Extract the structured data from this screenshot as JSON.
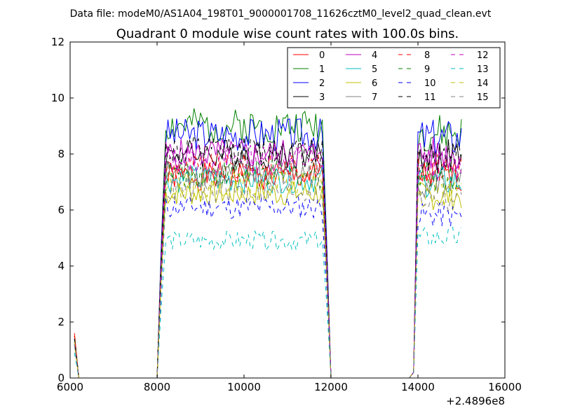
{
  "suptitle": "Data file: modeM0/AS1A04_198T01_9000001708_11626cztM0_level2_quad_clean.evt",
  "chart_data": {
    "type": "line",
    "title": "Quadrant 0 module wise count rates with 100.0s bins.",
    "xlabel": "",
    "ylabel": "",
    "xlim": [
      6000,
      16000
    ],
    "ylim": [
      0,
      12
    ],
    "x_ticks": [
      6000,
      8000,
      10000,
      12000,
      14000,
      16000
    ],
    "y_ticks": [
      0,
      2,
      4,
      6,
      8,
      10,
      12
    ],
    "x_offset_label": "+2.4896e8",
    "grid": false,
    "legend_position": "top-right",
    "legend_columns": 4,
    "segments": [
      {
        "t0": 6100,
        "t1": 6200,
        "ramp": false
      },
      {
        "t0": 6200,
        "t1": 8000,
        "ramp": false
      },
      {
        "t0": 8000,
        "t1": 12000,
        "ramp": true
      },
      {
        "t0": 12000,
        "t1": 13900,
        "ramp": false
      },
      {
        "t0": 13900,
        "t1": 15000,
        "ramp": true
      }
    ],
    "series": [
      {
        "name": "0",
        "color": "#ff0000",
        "dash": false,
        "first": 1.6,
        "level": 7.2,
        "level2": 7.2
      },
      {
        "name": "1",
        "color": "#008000",
        "dash": false,
        "first": 1.5,
        "level": 9.0,
        "level2": 8.7
      },
      {
        "name": "2",
        "color": "#0000ff",
        "dash": false,
        "first": 1.4,
        "level": 8.7,
        "level2": 8.6
      },
      {
        "name": "3",
        "color": "#000000",
        "dash": false,
        "first": 1.3,
        "level": 8.0,
        "level2": 7.9
      },
      {
        "name": "4",
        "color": "#bf00bf",
        "dash": false,
        "first": 1.4,
        "level": 8.0,
        "level2": 8.0
      },
      {
        "name": "5",
        "color": "#00bfbf",
        "dash": false,
        "first": 1.3,
        "level": 7.1,
        "level2": 7.0
      },
      {
        "name": "6",
        "color": "#bfbf00",
        "dash": false,
        "first": 1.2,
        "level": 6.6,
        "level2": 6.5
      },
      {
        "name": "7",
        "color": "#808080",
        "dash": false,
        "first": 1.2,
        "level": 7.3,
        "level2": 7.0
      },
      {
        "name": "8",
        "color": "#ff0000",
        "dash": true,
        "first": 1.5,
        "level": 7.5,
        "level2": 7.5
      },
      {
        "name": "9",
        "color": "#008000",
        "dash": true,
        "first": 1.4,
        "level": 7.3,
        "level2": 7.2
      },
      {
        "name": "10",
        "color": "#0000ff",
        "dash": true,
        "first": 1.2,
        "level": 6.1,
        "level2": 5.8
      },
      {
        "name": "11",
        "color": "#000000",
        "dash": true,
        "first": 1.4,
        "level": 8.1,
        "level2": 8.0
      },
      {
        "name": "12",
        "color": "#bf00bf",
        "dash": true,
        "first": 1.3,
        "level": 7.8,
        "level2": 7.6
      },
      {
        "name": "13",
        "color": "#00bfbf",
        "dash": true,
        "first": 0.9,
        "level": 4.9,
        "level2": 5.0
      },
      {
        "name": "14",
        "color": "#bfbf00",
        "dash": true,
        "first": 1.3,
        "level": 6.9,
        "level2": 6.6
      },
      {
        "name": "15",
        "color": "#808080",
        "dash": true,
        "first": 1.2,
        "level": 6.7,
        "level2": 6.4
      }
    ]
  }
}
